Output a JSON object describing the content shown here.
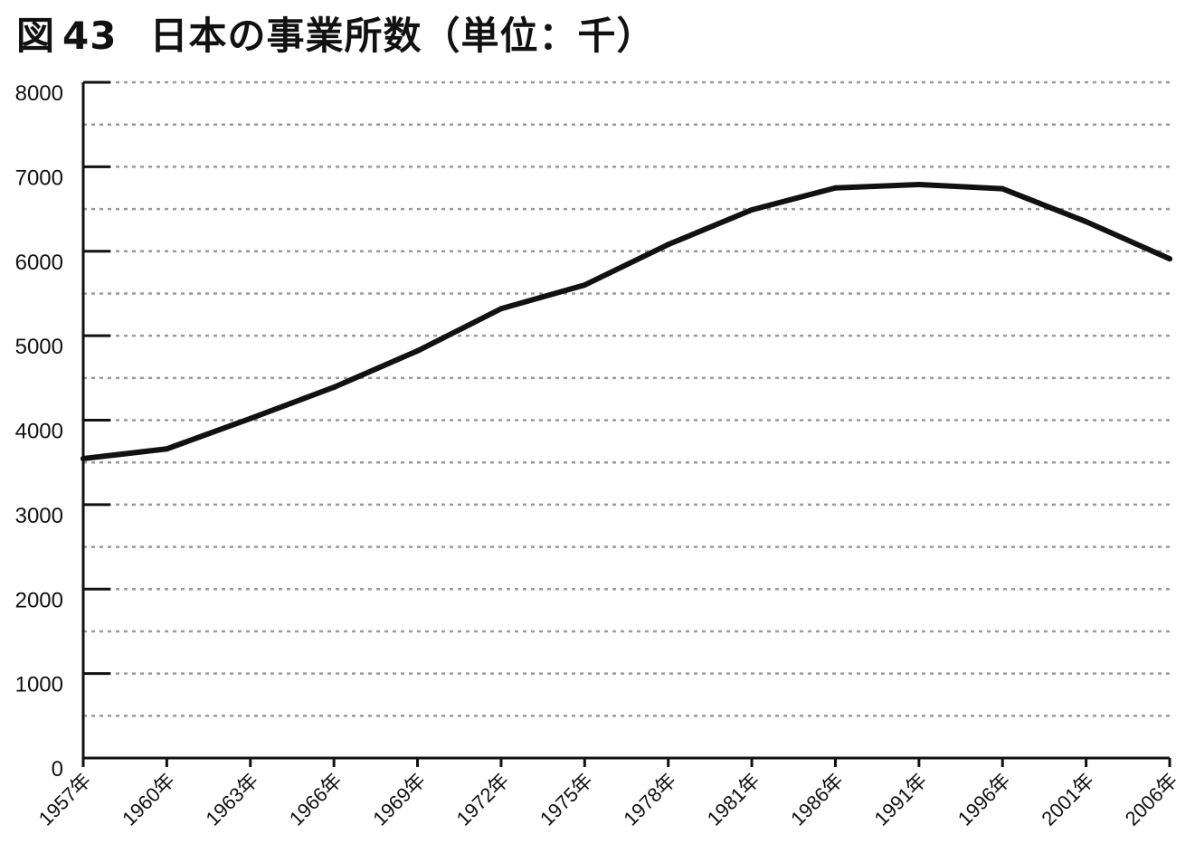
{
  "title": {
    "prefix": "図",
    "number": "43",
    "text": "日本の事業所数（単位：千）"
  },
  "chart_data": {
    "type": "line",
    "title": "図 43　日本の事業所数（単位：千）",
    "xlabel": "",
    "ylabel": "",
    "ylim": [
      0,
      8000
    ],
    "yticks": [
      0,
      1000,
      2000,
      3000,
      4000,
      5000,
      6000,
      7000,
      8000
    ],
    "grid": true,
    "categories": [
      "1957年",
      "1960年",
      "1963年",
      "1966年",
      "1969年",
      "1972年",
      "1975年",
      "1978年",
      "1981年",
      "1986年",
      "1991年",
      "1996年",
      "2001年",
      "2006年"
    ],
    "series": [
      {
        "values": [
          3545,
          3660,
          4020,
          4390,
          4820,
          5320,
          5600,
          6080,
          6490,
          6750,
          6790,
          6740,
          6350,
          5910
        ]
      }
    ],
    "line_color": "#111111",
    "grid_color": "#9a9a9a"
  }
}
